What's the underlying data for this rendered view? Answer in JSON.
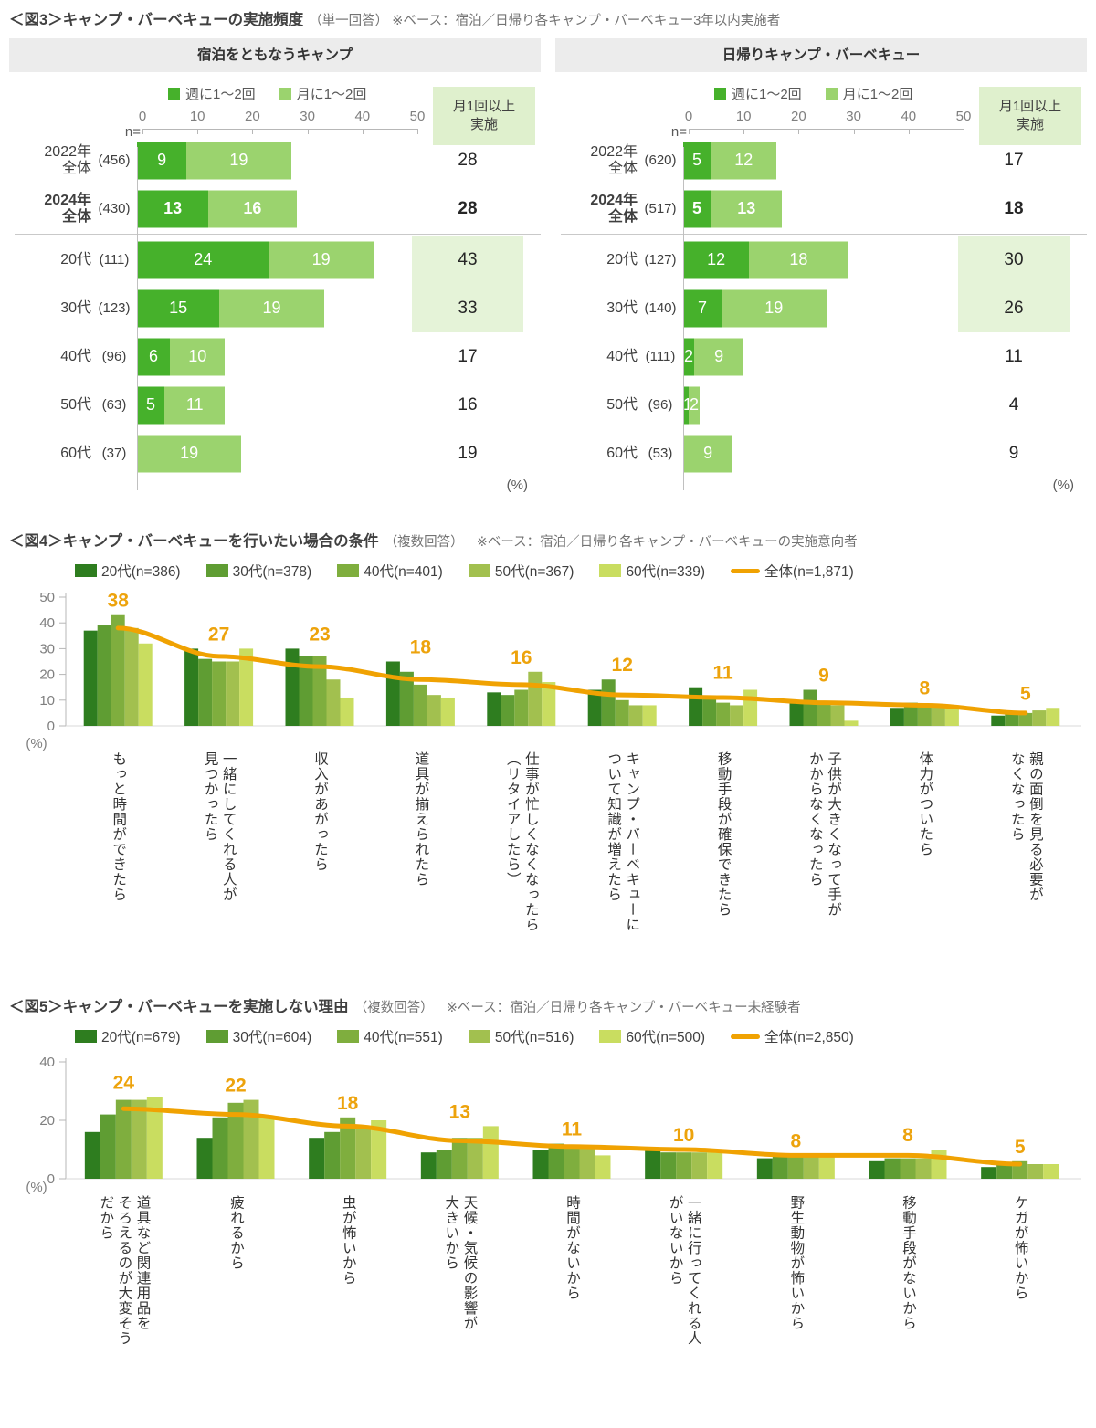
{
  "chart_data": [
    {
      "id": "fig3",
      "type": "bar",
      "title": "＜図3＞キャンプ・バーベキューの実施頻度",
      "note": "（単一回答） ※ベース：宿泊／日帰り各キャンプ・バーベキュー3年以内実施者",
      "legend": [
        "週に1〜2回",
        "月に1〜2回"
      ],
      "side_header": "月1回以上\n実施",
      "n_label": "n=",
      "pct_label": "(%)",
      "axis": {
        "min": 0,
        "max": 50,
        "ticks": [
          0,
          10,
          20,
          30,
          40,
          50
        ]
      },
      "colors": {
        "weekly": "#46b12b",
        "monthly": "#9bd36e",
        "highlight": "#e5f3d8",
        "sidebox": "#dff0cd"
      },
      "panels": [
        {
          "header": "宿泊をともなうキャンプ",
          "rows": [
            {
              "label": "2022年\n全体",
              "n": "(456)",
              "weekly": 9,
              "monthly": 19,
              "total": 28,
              "bold": false,
              "highlight": false
            },
            {
              "label": "2024年\n全体",
              "n": "(430)",
              "weekly": 13,
              "monthly": 16,
              "total": 28,
              "bold": true,
              "highlight": false
            },
            {
              "label": "20代",
              "n": "(111)",
              "weekly": 24,
              "monthly": 19,
              "total": 43,
              "bold": false,
              "highlight": true
            },
            {
              "label": "30代",
              "n": "(123)",
              "weekly": 15,
              "monthly": 19,
              "total": 33,
              "bold": false,
              "highlight": true
            },
            {
              "label": "40代",
              "n": "(96)",
              "weekly": 6,
              "monthly": 10,
              "total": 17,
              "bold": false,
              "highlight": false
            },
            {
              "label": "50代",
              "n": "(63)",
              "weekly": 5,
              "monthly": 11,
              "total": 16,
              "bold": false,
              "highlight": false
            },
            {
              "label": "60代",
              "n": "(37)",
              "weekly": null,
              "monthly": 19,
              "total": 19,
              "bold": false,
              "highlight": false
            }
          ]
        },
        {
          "header": "日帰りキャンプ・バーベキュー",
          "rows": [
            {
              "label": "2022年\n全体",
              "n": "(620)",
              "weekly": 5,
              "monthly": 12,
              "total": 17,
              "bold": false,
              "highlight": false
            },
            {
              "label": "2024年\n全体",
              "n": "(517)",
              "weekly": 5,
              "monthly": 13,
              "total": 18,
              "bold": true,
              "highlight": false
            },
            {
              "label": "20代",
              "n": "(127)",
              "weekly": 12,
              "monthly": 18,
              "total": 30,
              "bold": false,
              "highlight": true
            },
            {
              "label": "30代",
              "n": "(140)",
              "weekly": 7,
              "monthly": 19,
              "total": 26,
              "bold": false,
              "highlight": true
            },
            {
              "label": "40代",
              "n": "(111)",
              "weekly": 2,
              "monthly": 9,
              "total": 11,
              "bold": false,
              "highlight": false
            },
            {
              "label": "50代",
              "n": "(96)",
              "weekly": 1,
              "monthly": 2,
              "total": 4,
              "bold": false,
              "highlight": false
            },
            {
              "label": "60代",
              "n": "(53)",
              "weekly": null,
              "monthly": 9,
              "total": 9,
              "bold": false,
              "highlight": false
            }
          ]
        }
      ]
    },
    {
      "id": "fig4",
      "type": "bar+line",
      "title": "＜図4＞キャンプ・バーベキューを行いたい場合の条件",
      "note": "（複数回答）",
      "base_note": "※ベース：宿泊／日帰り各キャンプ・バーベキューの実施意向者",
      "pct_label": "(%)",
      "ylim": [
        0,
        50
      ],
      "yticks": [
        0,
        10,
        20,
        30,
        40,
        50
      ],
      "categories": [
        "もっと時間ができたら",
        "一緒にしてくれる人が\n見つかったら",
        "収入があがったら",
        "道具が揃えられたら",
        "仕事が忙しくなくなったら\n（リタイアしたら）",
        "キャンプ・バーベキューに\nついて知識が増えたら",
        "移動手段が確保できたら",
        "子供が大きくなって手が\nかからなくなったら",
        "体力がついたら",
        "親の面倒を見る必要が\nなくなったら"
      ],
      "series": [
        {
          "name": "20代(n=386)",
          "color": "#2e7d1f",
          "values": [
            37,
            30,
            30,
            25,
            13,
            14,
            15,
            9,
            7,
            4
          ]
        },
        {
          "name": "30代(n=378)",
          "color": "#5f9d33",
          "values": [
            39,
            26,
            27,
            21,
            12,
            18,
            11,
            14,
            9,
            5
          ]
        },
        {
          "name": "40代(n=401)",
          "color": "#7fae3e",
          "values": [
            43,
            25,
            27,
            16,
            14,
            10,
            9,
            9,
            8,
            5
          ]
        },
        {
          "name": "50代(n=367)",
          "color": "#a2c04f",
          "values": [
            38,
            25,
            18,
            12,
            21,
            8,
            8,
            8,
            8,
            6
          ]
        },
        {
          "name": "60代(n=339)",
          "color": "#c9dd60",
          "values": [
            32,
            30,
            11,
            11,
            17,
            8,
            14,
            2,
            8,
            7
          ]
        }
      ],
      "line": {
        "name": "全体(n=1,871)",
        "color": "#f0a202",
        "label_color": "#eda califica30c",
        "values": [
          38,
          27,
          23,
          18,
          16,
          12,
          11,
          9,
          8,
          5
        ]
      }
    },
    {
      "id": "fig5",
      "type": "bar+line",
      "title": "＜図5＞キャンプ・バーベキューを実施しない理由",
      "note": "（複数回答）",
      "base_note": "※ベース：宿泊／日帰り各キャンプ・バーベキュー未経験者",
      "pct_label": "(%)",
      "ylim": [
        0,
        40
      ],
      "yticks": [
        0,
        20,
        40
      ],
      "categories": [
        "道具など関連用品を\nそろえるのが大変そう\nだから",
        "疲れるから",
        "虫が怖いから",
        "天候・気候の影響が\n大きいから",
        "時間がないから",
        "一緒に行ってくれる人\nがいないから",
        "野生動物が怖いから",
        "移動手段がないから",
        "ケガが怖いから"
      ],
      "series": [
        {
          "name": "20代(n=679)",
          "color": "#2e7d1f",
          "values": [
            16,
            14,
            14,
            9,
            10,
            10,
            7,
            6,
            4
          ]
        },
        {
          "name": "30代(n=604)",
          "color": "#5f9d33",
          "values": [
            22,
            21,
            16,
            10,
            12,
            9,
            8,
            7,
            5
          ]
        },
        {
          "name": "40代(n=551)",
          "color": "#7fae3e",
          "values": [
            27,
            26,
            21,
            14,
            11,
            9,
            8,
            7,
            6
          ]
        },
        {
          "name": "50代(n=516)",
          "color": "#a2c04f",
          "values": [
            27,
            27,
            18,
            14,
            11,
            9,
            8,
            7,
            5
          ]
        },
        {
          "name": "60代(n=500)",
          "color": "#c9dd60",
          "values": [
            28,
            21,
            20,
            18,
            8,
            10,
            8,
            10,
            5
          ]
        }
      ],
      "line": {
        "name": "全体(n=2,850)",
        "color": "#f0a202",
        "values": [
          24,
          22,
          18,
          13,
          11,
          10,
          8,
          8,
          5
        ]
      }
    }
  ]
}
